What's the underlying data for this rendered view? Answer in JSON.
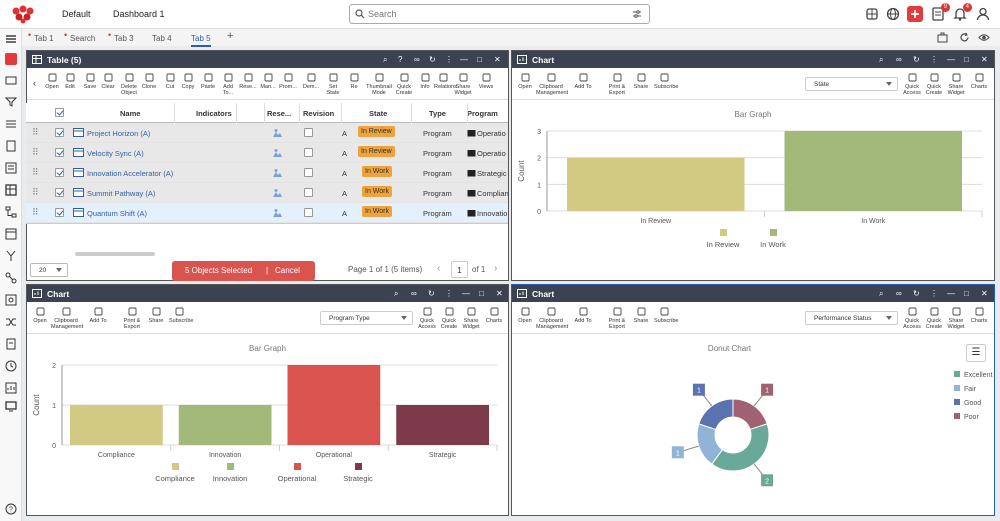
{
  "topbar": {
    "tab_default": "Default",
    "tab_dashboard": "Dashboard 1",
    "search_placeholder": "Search",
    "badges": {
      "tasks": "9",
      "notifications": "4"
    }
  },
  "tabs": [
    {
      "label": "Tab 1"
    },
    {
      "label": "Search"
    },
    {
      "label": "Tab 3"
    },
    {
      "label": "Tab 4"
    },
    {
      "label": "Tab 5"
    }
  ],
  "table_panel": {
    "title": "Table (5)",
    "toolbar": [
      "Open",
      "Edit",
      "Save",
      "Clear",
      "Delete Object",
      "Clone",
      "Cut",
      "Copy",
      "Paste",
      "Add To...",
      "Rese...",
      "Man...",
      "Prom...",
      "Dem...",
      "Set State",
      "Re",
      "Thumbnail Mode",
      "Quick Create",
      "Info",
      "Relations",
      "Share Widget",
      "Views"
    ],
    "columns": [
      "Name",
      "Indicators",
      "Rese...",
      "Revision",
      "State",
      "Type",
      "Program"
    ],
    "rows": [
      {
        "name": "Project Horizon (A)",
        "revision": "A",
        "state": "In Review",
        "type": "Program",
        "program": "Operatio"
      },
      {
        "name": "Velocity Sync (A)",
        "revision": "A",
        "state": "In Review",
        "type": "Program",
        "program": "Operatio"
      },
      {
        "name": "Innovation Accelerator (A)",
        "revision": "A",
        "state": "In Work",
        "type": "Program",
        "program": "Strategic"
      },
      {
        "name": "Summit Pathway (A)",
        "revision": "A",
        "state": "In Work",
        "type": "Program",
        "program": "Complian"
      },
      {
        "name": "Quantum Shift (A)",
        "revision": "A",
        "state": "In Work",
        "type": "Program",
        "program": "Innovatio"
      }
    ],
    "page_size": "20",
    "selected_text": "5 Objects Selected",
    "cancel": "Cancel",
    "page_text": "Page 1 of 1 (5 items)",
    "page_num": "1",
    "of_pages": "of 1"
  },
  "chart_toolbar": [
    "Open",
    "Clipboard Management",
    "Add To",
    "Print & Export",
    "Share",
    "Subscribe"
  ],
  "chart_toolbar_right": [
    "Quick Access",
    "Quick Create",
    "Share Widget",
    "Charts"
  ],
  "chart_panel_title": "Chart",
  "chart_data": [
    {
      "type": "bar",
      "title": "Bar Graph",
      "selector": "State",
      "ylabel": "Count",
      "ylim": [
        0,
        3
      ],
      "categories": [
        "In Review",
        "In Work"
      ],
      "values": [
        2,
        3
      ],
      "colors": [
        "#d2c983",
        "#a2b97a"
      ]
    },
    {
      "type": "bar",
      "title": "Bar Graph",
      "selector": "Program Type",
      "ylabel": "Count",
      "ylim": [
        0,
        2
      ],
      "categories": [
        "Compliance",
        "Innovation",
        "Operational",
        "Strategic"
      ],
      "values": [
        1,
        1,
        2,
        1
      ],
      "colors": [
        "#d2c983",
        "#a2b97a",
        "#d9534f",
        "#7d3a4a"
      ]
    },
    {
      "type": "pie",
      "title": "Donut Chart",
      "selector": "Performance Status",
      "categories": [
        "Excellent",
        "Fair",
        "Good",
        "Poor"
      ],
      "values": [
        2,
        1,
        1,
        1
      ],
      "colors": [
        "#6aa89a",
        "#8fb4d6",
        "#5b72b0",
        "#a06272"
      ]
    }
  ]
}
